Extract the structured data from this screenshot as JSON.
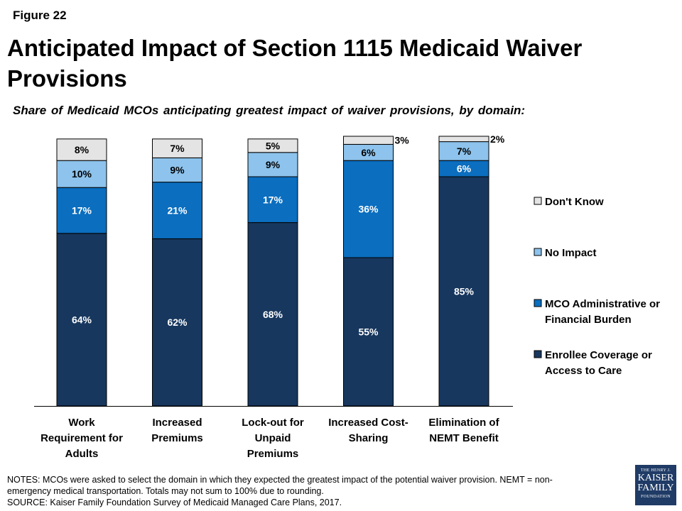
{
  "figure_label": "Figure 22",
  "title": "Anticipated Impact of Section 1115 Medicaid Waiver Provisions",
  "subtitle": "Share of Medicaid MCOs anticipating greatest impact of waiver provisions, by domain:",
  "notes": [
    "NOTES: MCOs were asked to select the domain in which they expected the greatest impact of the potential waiver provision. NEMT = non-",
    "emergency medical transportation. Totals may not sum to 100% due to rounding.",
    "SOURCE: Kaiser Family Foundation Survey of Medicaid Managed Care Plans, 2017."
  ],
  "logo": {
    "line1": "THE HENRY J.",
    "line2": "KAISER",
    "line3": "FAMILY",
    "line4": "FOUNDATION"
  },
  "chart_data": {
    "type": "bar",
    "stacked": true,
    "ylim": [
      0,
      100
    ],
    "grid": false,
    "legend_position": "right",
    "categories": [
      [
        "Work",
        "Requirement for",
        "Adults"
      ],
      [
        "Increased",
        "Premiums"
      ],
      [
        "Lock-out for",
        "Unpaid",
        "Premiums"
      ],
      [
        "Increased Cost-",
        "Sharing"
      ],
      [
        "Elimination of",
        "NEMT Benefit"
      ]
    ],
    "series": [
      {
        "name": "Enrollee Coverage or Access to Care",
        "legend_lines": [
          "Enrollee Coverage or",
          "Access to Care"
        ],
        "color": "#17375e",
        "label_color": "#ffffff",
        "values": [
          64,
          62,
          68,
          55,
          85
        ]
      },
      {
        "name": "MCO Administrative or Financial Burden",
        "legend_lines": [
          "MCO Administrative or",
          "Financial Burden"
        ],
        "color": "#0b6ebf",
        "label_color": "#ffffff",
        "values": [
          17,
          21,
          17,
          36,
          6
        ]
      },
      {
        "name": "No Impact",
        "legend_lines": [
          "No Impact"
        ],
        "color": "#8dc3ec",
        "label_color": "#000000",
        "values": [
          10,
          9,
          9,
          6,
          7
        ]
      },
      {
        "name": "Don't Know",
        "legend_lines": [
          "Don't Know"
        ],
        "color": "#e4e4e4",
        "label_color": "#000000",
        "values": [
          8,
          7,
          5,
          3,
          2
        ]
      }
    ],
    "value_labels": [
      [
        "64%",
        "17%",
        "10%",
        "8%"
      ],
      [
        "62%",
        "21%",
        "9%",
        "7%"
      ],
      [
        "68%",
        "17%",
        "9%",
        "5%"
      ],
      [
        "55%",
        "36%",
        "6%",
        "3%"
      ],
      [
        "85%",
        "6%",
        "7%",
        "2%"
      ]
    ]
  }
}
